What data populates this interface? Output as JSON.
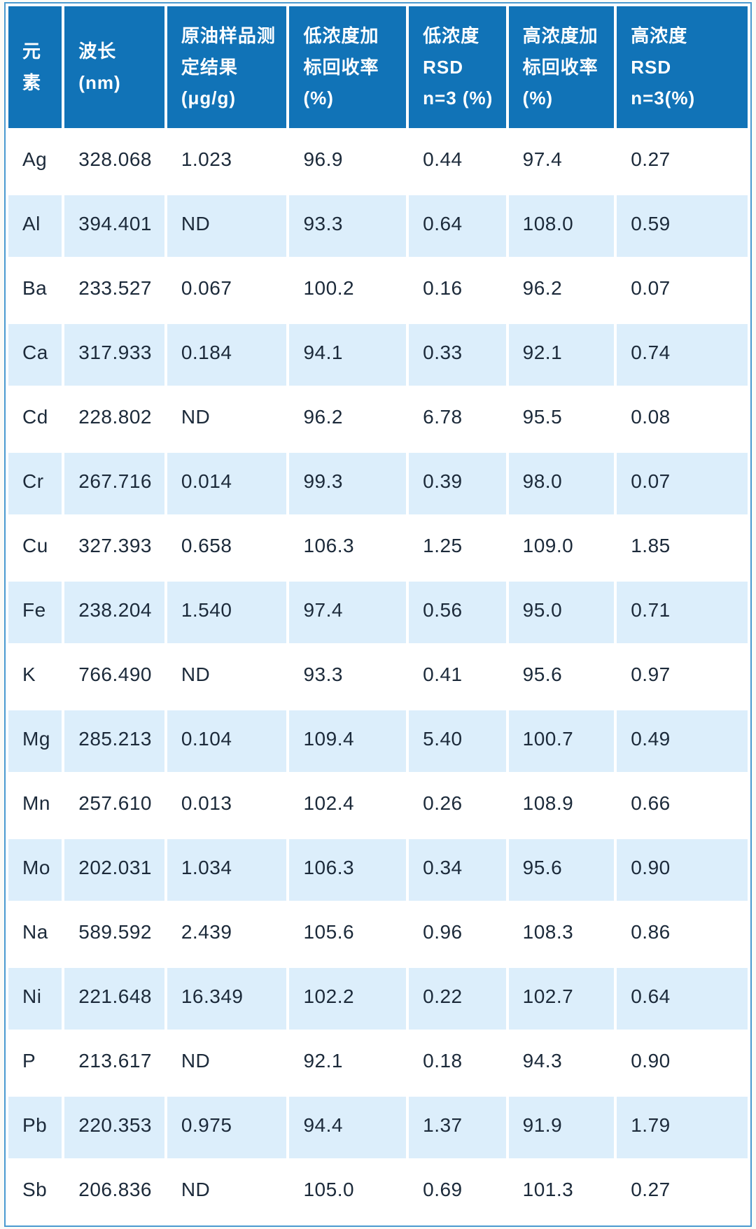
{
  "chart_data": {
    "type": "table",
    "columns": [
      "元\n素",
      "波长\n(nm)",
      "原油样品测\n定结果\n(μg/g)",
      "低浓度加\n标回收率\n(%)",
      "低浓度\nRSD\nn=3 (%)",
      "高浓度加\n标回收率\n(%)",
      "高浓度\nRSD\nn=3(%)"
    ],
    "rows": [
      [
        "Ag",
        "328.068",
        "1.023",
        "96.9",
        "0.44",
        "97.4",
        "0.27"
      ],
      [
        "Al",
        "394.401",
        "ND",
        "93.3",
        "0.64",
        "108.0",
        "0.59"
      ],
      [
        "Ba",
        "233.527",
        "0.067",
        "100.2",
        "0.16",
        "96.2",
        "0.07"
      ],
      [
        "Ca",
        "317.933",
        "0.184",
        "94.1",
        "0.33",
        "92.1",
        "0.74"
      ],
      [
        "Cd",
        "228.802",
        "ND",
        "96.2",
        "6.78",
        "95.5",
        "0.08"
      ],
      [
        "Cr",
        "267.716",
        "0.014",
        "99.3",
        "0.39",
        "98.0",
        "0.07"
      ],
      [
        "Cu",
        "327.393",
        "0.658",
        "106.3",
        "1.25",
        "109.0",
        "1.85"
      ],
      [
        "Fe",
        "238.204",
        "1.540",
        "97.4",
        "0.56",
        "95.0",
        "0.71"
      ],
      [
        "K",
        "766.490",
        "ND",
        "93.3",
        "0.41",
        "95.6",
        "0.97"
      ],
      [
        "Mg",
        "285.213",
        "0.104",
        "109.4",
        "5.40",
        "100.7",
        "0.49"
      ],
      [
        "Mn",
        "257.610",
        "0.013",
        "102.4",
        "0.26",
        "108.9",
        "0.66"
      ],
      [
        "Mo",
        "202.031",
        "1.034",
        "106.3",
        "0.34",
        "95.6",
        "0.90"
      ],
      [
        "Na",
        "589.592",
        "2.439",
        "105.6",
        "0.96",
        "108.3",
        "0.86"
      ],
      [
        "Ni",
        "221.648",
        "16.349",
        "102.2",
        "0.22",
        "102.7",
        "0.64"
      ],
      [
        "P",
        "213.617",
        "ND",
        "92.1",
        "0.18",
        "94.3",
        "0.90"
      ],
      [
        "Pb",
        "220.353",
        "0.975",
        "94.4",
        "1.37",
        "91.9",
        "1.79"
      ],
      [
        "Sb",
        "206.836",
        "ND",
        "105.0",
        "0.69",
        "101.3",
        "0.27"
      ]
    ]
  },
  "colors": {
    "header_bg": "#1173B7",
    "row_alt_bg": "#DCEEFB",
    "border": "#4A9AD0",
    "body_text": "#1C2A3A",
    "header_text": "#FFFFFF",
    "page_bg": "#FBFBF8"
  }
}
